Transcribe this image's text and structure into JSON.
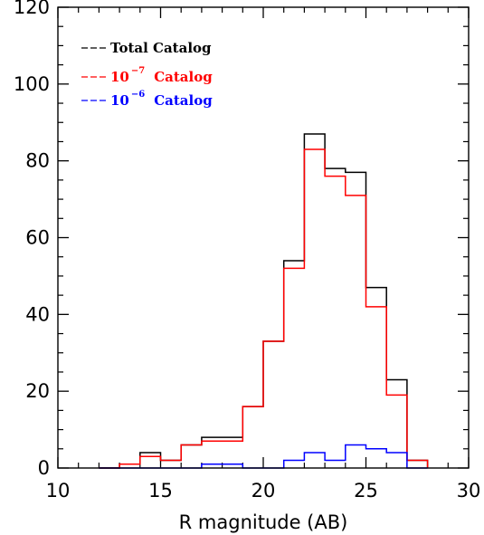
{
  "chart_data": {
    "type": "histogram",
    "title": "",
    "xlabel": "R magnitude (AB)",
    "ylabel": "",
    "xlim": [
      10,
      30
    ],
    "ylim": [
      0,
      120
    ],
    "grid": false,
    "legend_position": "top-left",
    "x_major_ticks": [
      10,
      15,
      20,
      25,
      30
    ],
    "x_minor_step": 1,
    "y_major_ticks": [
      0,
      20,
      40,
      60,
      80,
      100,
      120
    ],
    "y_minor_step": 5,
    "bin_edges": [
      12,
      13,
      14,
      15,
      16,
      17,
      18,
      19,
      20,
      21,
      22,
      23,
      24,
      25,
      26,
      27,
      28
    ],
    "series": [
      {
        "name": "Total Catalog",
        "legend_base": "Total Catalog",
        "legend_exp": "",
        "color": "#000000",
        "values": [
          0,
          1,
          4,
          2,
          6,
          8,
          8,
          16,
          33,
          54,
          87,
          78,
          77,
          47,
          23,
          2
        ]
      },
      {
        "name": "10^-7 Catalog",
        "legend_base": "10",
        "legend_exp": "−7",
        "legend_rest": "Catalog",
        "color": "#ff0000",
        "values": [
          0,
          1,
          3,
          2,
          6,
          7,
          7,
          16,
          33,
          52,
          83,
          76,
          71,
          42,
          19,
          2
        ]
      },
      {
        "name": "10^-6 Catalog",
        "legend_base": "10",
        "legend_exp": "−6",
        "legend_rest": "Catalog",
        "color": "#0000ff",
        "values": [
          0,
          0,
          0,
          0,
          0,
          1,
          1,
          0,
          0,
          2,
          4,
          2,
          6,
          5,
          4,
          0
        ]
      }
    ]
  }
}
